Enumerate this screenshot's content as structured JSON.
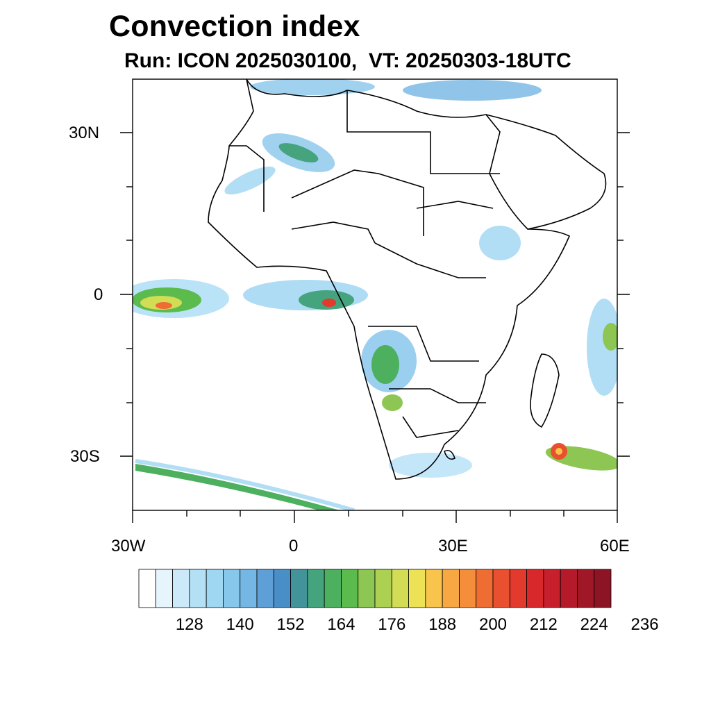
{
  "title": "Convection index",
  "subtitle": "Run: ICON 2025030100,  VT: 20250303-18UTC",
  "map": {
    "lon_range": [
      -30,
      60
    ],
    "lat_range": [
      -40,
      40
    ],
    "y_axis_labels": [
      "30N",
      "0",
      "30S"
    ],
    "x_axis_labels": [
      "30W",
      "0",
      "30E",
      "60E"
    ]
  },
  "colorbar": {
    "labels": [
      "128",
      "140",
      "152",
      "164",
      "176",
      "188",
      "200",
      "212",
      "224",
      "236"
    ],
    "colors": [
      "#ffffff",
      "#e6f4fc",
      "#cbe9f8",
      "#b4e0f6",
      "#9fd6f2",
      "#88c7ec",
      "#74b6e4",
      "#5d9fd6",
      "#4a8ec8",
      "#43939a",
      "#45a37e",
      "#4cb05f",
      "#5bbb4d",
      "#8dc652",
      "#acd052",
      "#d2dc55",
      "#ede256",
      "#f8c44b",
      "#f8a842",
      "#f48e3a",
      "#ef6d33",
      "#e8502f",
      "#e23a2d",
      "#d9282c",
      "#c81f2c",
      "#b41a2a",
      "#a01727",
      "#8c1424"
    ]
  }
}
